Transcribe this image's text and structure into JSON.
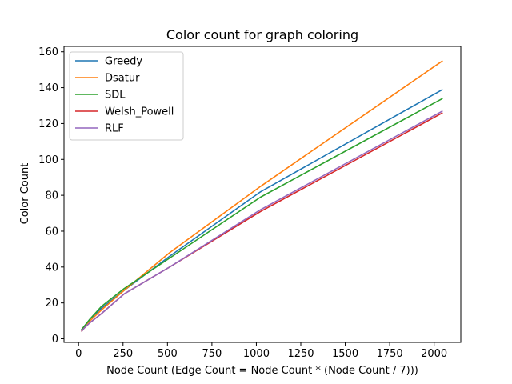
{
  "chart_data": {
    "type": "line",
    "title": "Color count for graph coloring",
    "xlabel": "Node Count (Edge Count = Node Count * (Node Count / 7)))",
    "ylabel": "Color Count",
    "xlim": [
      -82,
      2150
    ],
    "ylim": [
      -2,
      163
    ],
    "xticks": [
      0,
      250,
      500,
      750,
      1000,
      1250,
      1500,
      1750,
      2000
    ],
    "yticks": [
      0,
      20,
      40,
      60,
      80,
      100,
      120,
      140,
      160
    ],
    "grid": false,
    "legend_position": "top-left",
    "x": [
      16,
      32,
      64,
      128,
      256,
      512,
      1024,
      2048
    ],
    "series": [
      {
        "name": "Greedy",
        "color": "#1f77b4",
        "values": [
          5,
          7,
          11,
          17,
          27,
          46,
          82,
          139
        ]
      },
      {
        "name": "Dsatur",
        "color": "#ff7f0e",
        "values": [
          4,
          7,
          10,
          16,
          27,
          48,
          85,
          155
        ]
      },
      {
        "name": "SDL",
        "color": "#2ca02c",
        "values": [
          5,
          7,
          11,
          18,
          28,
          45,
          79,
          134
        ]
      },
      {
        "name": "Welsh_Powell",
        "color": "#d62728",
        "values": [
          4,
          6,
          9,
          14,
          25,
          40,
          71,
          126
        ]
      },
      {
        "name": "RLF",
        "color": "#9467bd",
        "values": [
          4,
          6,
          9,
          14,
          25,
          40,
          72,
          127
        ]
      }
    ]
  }
}
